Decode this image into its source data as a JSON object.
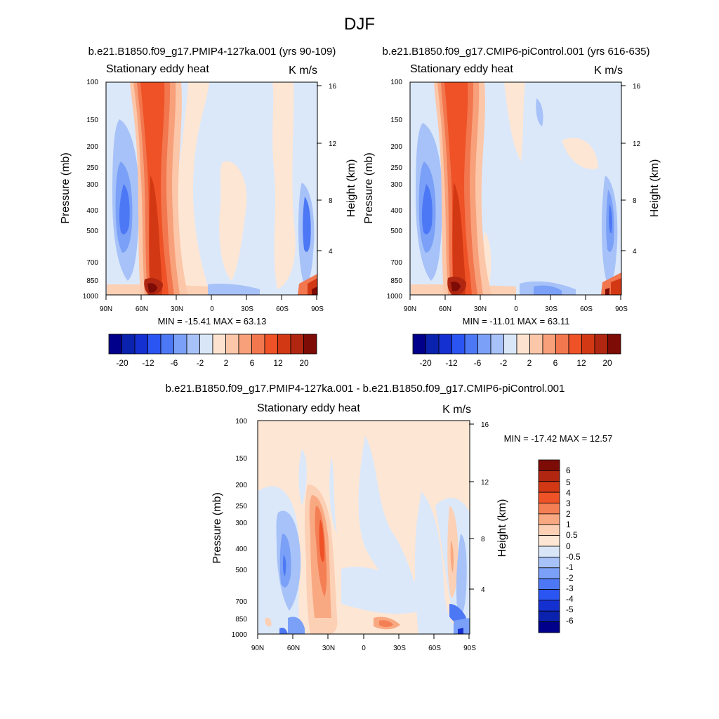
{
  "figure": {
    "title": "DJF",
    "colors": {
      "top_scale": [
        "#00008a",
        "#0a22ad",
        "#1530d0",
        "#2a55f2",
        "#4d78f5",
        "#7aa0f7",
        "#a7c2f8",
        "#d8e6f7",
        "#fde3cf",
        "#fcc6a8",
        "#f7a07a",
        "#f2764e",
        "#ee5226",
        "#d23814",
        "#b02610",
        "#7d0b06"
      ],
      "diff_scale": [
        "#00008a",
        "#0a22ad",
        "#1530d0",
        "#2a55f2",
        "#4d78f5",
        "#7aa0f7",
        "#a7c2f8",
        "#d8e6f7",
        "#fde6d4",
        "#fcd0b5",
        "#f9a982",
        "#f57f55",
        "#ee5226",
        "#d23814",
        "#b02610",
        "#7d0b06"
      ],
      "background_neg": "#dbe8fa",
      "background_pos": "#fde6d4"
    }
  },
  "chart_data": [
    {
      "type": "heatmap",
      "panel": "top-left",
      "title": "b.e21.B1850.f09_g17.PMIP4-127ka.001 (yrs 90-109)",
      "variable": "Stationary eddy heat",
      "units": "K m/s",
      "ylabel": "Pressure (mb)",
      "ylabel_right": "Height (km)",
      "x_ticks": [
        "90N",
        "60N",
        "30N",
        "0",
        "30S",
        "60S",
        "90S"
      ],
      "y_ticks": [
        "100",
        "150",
        "200",
        "250",
        "300",
        "400",
        "500",
        "700",
        "850",
        "1000"
      ],
      "y_ticks_right": [
        "16",
        "12",
        "8",
        "4"
      ],
      "min": -15.41,
      "max": 63.13,
      "minmax_text": "MIN = -15.41  MAX =  63.13",
      "colorbar_labels": [
        "-20",
        "-12",
        "-6",
        "-2",
        "2",
        "6",
        "12",
        "20"
      ]
    },
    {
      "type": "heatmap",
      "panel": "top-right",
      "title": "b.e21.B1850.f09_g17.CMIP6-piControl.001 (yrs 616-635)",
      "variable": "Stationary eddy heat",
      "units": "K m/s",
      "ylabel": "Pressure (mb)",
      "ylabel_right": "Height (km)",
      "x_ticks": [
        "90N",
        "60N",
        "30N",
        "0",
        "30S",
        "60S",
        "90S"
      ],
      "y_ticks": [
        "100",
        "150",
        "200",
        "250",
        "300",
        "400",
        "500",
        "700",
        "850",
        "1000"
      ],
      "y_ticks_right": [
        "16",
        "12",
        "8",
        "4"
      ],
      "min": -11.01,
      "max": 63.11,
      "minmax_text": "MIN = -11.01  MAX =  63.11",
      "colorbar_labels": [
        "-20",
        "-12",
        "-6",
        "-2",
        "2",
        "6",
        "12",
        "20"
      ]
    },
    {
      "type": "heatmap",
      "panel": "bottom",
      "title": "b.e21.B1850.f09_g17.PMIP4-127ka.001 - b.e21.B1850.f09_g17.CMIP6-piControl.001",
      "variable": "Stationary eddy heat",
      "units": "K m/s",
      "ylabel": "Pressure (mb)",
      "ylabel_right": "Height (km)",
      "x_ticks": [
        "90N",
        "60N",
        "30N",
        "0",
        "30S",
        "60S",
        "90S"
      ],
      "y_ticks": [
        "100",
        "150",
        "200",
        "250",
        "300",
        "400",
        "500",
        "700",
        "850",
        "1000"
      ],
      "y_ticks_right": [
        "16",
        "12",
        "8",
        "4"
      ],
      "min": -17.42,
      "max": 12.57,
      "minmax_text": "MIN = -17.42  MAX =  12.57",
      "colorbar_labels": [
        "6",
        "5",
        "4",
        "3",
        "2",
        "1",
        "0.5",
        "0",
        "-0.5",
        "-1",
        "-2",
        "-3",
        "-4",
        "-5",
        "-6"
      ]
    }
  ]
}
